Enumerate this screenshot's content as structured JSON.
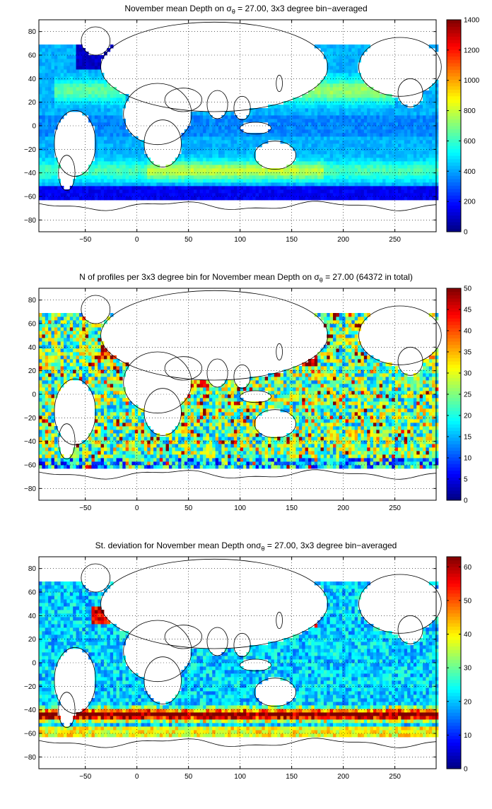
{
  "chart_data": [
    {
      "type": "heatmap",
      "title_pre": "November mean Depth on ",
      "title_sigma": "σ",
      "title_sub": "θ",
      "title_post": " = 27.00, 3x3 degree bin−averaged",
      "xlim": [
        -95,
        290
      ],
      "ylim": [
        -90,
        90
      ],
      "xticks": [
        -50,
        0,
        50,
        100,
        150,
        200,
        250
      ],
      "yticks": [
        80,
        60,
        40,
        20,
        0,
        -20,
        -40,
        -60,
        -80
      ],
      "colorbar": {
        "min": 0,
        "max": 1400,
        "ticks": [
          0,
          200,
          400,
          600,
          800,
          1000,
          1200,
          1400
        ]
      },
      "grid": true,
      "colormap": "jet"
    },
    {
      "type": "heatmap",
      "title_pre": "N of profiles per 3x3 degree bin for November mean Depth on ",
      "title_sigma": "σ",
      "title_sub": "θ",
      "title_post": " = 27.00 (64372 in total)",
      "xlim": [
        -95,
        290
      ],
      "ylim": [
        -90,
        90
      ],
      "xticks": [
        -50,
        0,
        50,
        100,
        150,
        200,
        250
      ],
      "yticks": [
        80,
        60,
        40,
        20,
        0,
        -20,
        -40,
        -60,
        -80
      ],
      "colorbar": {
        "min": 0,
        "max": 50,
        "ticks": [
          0,
          5,
          10,
          15,
          20,
          25,
          30,
          35,
          40,
          45,
          50
        ]
      },
      "grid": true,
      "colormap": "jet"
    },
    {
      "type": "heatmap",
      "title_pre": "St. deviation for November mean Depth on",
      "title_sigma": "σ",
      "title_sub": "θ",
      "title_post": " = 27.00, 3x3 degree bin−averaged",
      "xlim": [
        -95,
        290
      ],
      "ylim": [
        -90,
        90
      ],
      "xticks": [
        -50,
        0,
        50,
        100,
        150,
        200,
        250
      ],
      "yticks": [
        80,
        60,
        40,
        20,
        0,
        -20,
        -40,
        -60,
        -80
      ],
      "colorbar": {
        "min": 0,
        "max": 63,
        "ticks": [
          0,
          10,
          20,
          30,
          40,
          50,
          60
        ]
      },
      "grid": true,
      "colormap": "jet"
    }
  ]
}
